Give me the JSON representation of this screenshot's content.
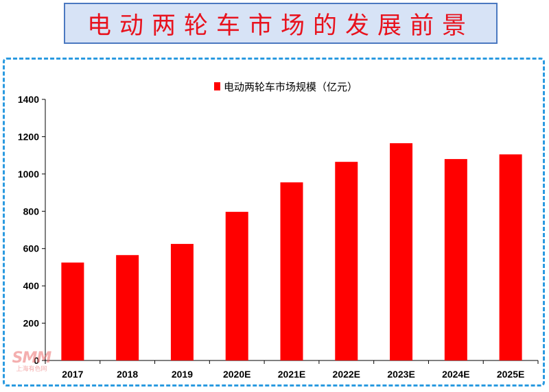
{
  "header": {
    "title": "电动两轮车市场的发展前景"
  },
  "watermark": {
    "logo": "SMM",
    "text": "上海有色网"
  },
  "colors": {
    "bar": "#ff0000",
    "title_text": "#e8121d",
    "title_bg": "#d7e3f6",
    "frame_border": "#2a9ae0"
  },
  "chart_data": {
    "type": "bar",
    "title": "",
    "xlabel": "",
    "ylabel": "",
    "categories": [
      "2017",
      "2018",
      "2019",
      "2020E",
      "2021E",
      "2022E",
      "2023E",
      "2024E",
      "2025E"
    ],
    "series": [
      {
        "name": "电动两轮车市场规模（亿元）",
        "values": [
          525,
          565,
          625,
          797,
          955,
          1065,
          1165,
          1080,
          1105
        ]
      }
    ],
    "ylim": [
      0,
      1400
    ],
    "yticks": [
      0,
      200,
      400,
      600,
      800,
      1000,
      1200,
      1400
    ],
    "legend": "top-center",
    "grid": false
  }
}
